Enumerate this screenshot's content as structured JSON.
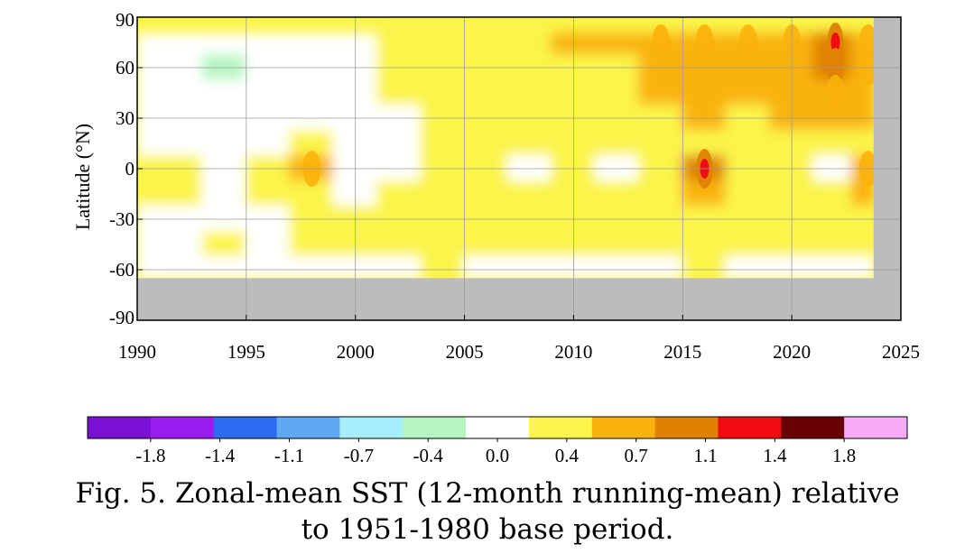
{
  "chart_data": {
    "type": "heatmap",
    "title": "",
    "xlabel": "",
    "ylabel": "Latitude (°N)",
    "xlim": [
      1990,
      2025
    ],
    "ylim": [
      -90,
      90
    ],
    "x_ticks": [
      1990,
      1995,
      2000,
      2005,
      2010,
      2015,
      2020,
      2025
    ],
    "y_ticks": [
      {
        "value": 90,
        "label": "90"
      },
      {
        "value": 60,
        "label": "60"
      },
      {
        "value": 30,
        "label": "30"
      },
      {
        "value": 0,
        "label": "0"
      },
      {
        "value": -30,
        "label": "-30"
      },
      {
        "value": -60,
        "label": "-60"
      },
      {
        "value": -90,
        "label": "-90"
      }
    ],
    "grid": true,
    "colorbar": {
      "tick_labels": [
        "-1.8",
        "-1.4",
        "-1.1",
        "-0.7",
        "-0.4",
        "0.0",
        "0.4",
        "0.7",
        "1.1",
        "1.4",
        "1.8"
      ],
      "colors": [
        "#7a10d6",
        "#9a1cf0",
        "#2b6cf2",
        "#5ea8f5",
        "#a6eefc",
        "#b4f5c0",
        "#ffffff",
        "#fbf44a",
        "#f9b30c",
        "#df8204",
        "#f00c12",
        "#6a0004",
        "#f8aaf8"
      ]
    },
    "no_data_color": "#bcbcbc",
    "no_data_after_year": 2023.75,
    "data_lat_range": [
      -65,
      80
    ],
    "latitudes": [
      75,
      60,
      45,
      30,
      15,
      0,
      -15,
      -30,
      -45,
      -60
    ],
    "years": [
      1990,
      1992,
      1994,
      1996,
      1998,
      2000,
      2002,
      2004,
      2006,
      2008,
      2010,
      2012,
      2014,
      2016,
      2018,
      2020,
      2022,
      2023.5
    ],
    "values": [
      [
        0.3,
        0.1,
        0.0,
        0.2,
        0.3,
        0.3,
        0.4,
        0.6,
        0.6,
        0.6,
        0.7,
        0.7,
        0.9,
        1.0,
        0.9,
        1.0,
        1.2,
        1.0
      ],
      [
        0.2,
        0.0,
        -0.1,
        0.0,
        0.2,
        0.3,
        0.4,
        0.6,
        0.6,
        0.5,
        0.6,
        0.6,
        0.7,
        0.8,
        0.7,
        0.8,
        1.1,
        0.9
      ],
      [
        0.2,
        0.1,
        0.0,
        0.1,
        0.3,
        0.3,
        0.4,
        0.5,
        0.6,
        0.5,
        0.6,
        0.6,
        0.7,
        0.8,
        0.8,
        0.8,
        0.9,
        0.8
      ],
      [
        0.3,
        0.2,
        0.1,
        0.2,
        0.3,
        0.3,
        0.3,
        0.4,
        0.5,
        0.5,
        0.5,
        0.5,
        0.6,
        0.7,
        0.6,
        0.7,
        0.7,
        0.7
      ],
      [
        0.3,
        0.3,
        0.2,
        0.3,
        0.4,
        0.2,
        0.3,
        0.4,
        0.4,
        0.4,
        0.5,
        0.4,
        0.5,
        0.6,
        0.5,
        0.6,
        0.4,
        0.6
      ],
      [
        0.5,
        0.4,
        0.3,
        0.4,
        0.9,
        0.1,
        0.3,
        0.5,
        0.4,
        0.3,
        0.6,
        0.3,
        0.5,
        1.2,
        0.5,
        0.6,
        0.3,
        0.9
      ],
      [
        0.4,
        0.4,
        0.3,
        0.4,
        0.6,
        0.3,
        0.4,
        0.5,
        0.5,
        0.4,
        0.6,
        0.5,
        0.6,
        0.8,
        0.6,
        0.6,
        0.5,
        0.7
      ],
      [
        0.3,
        0.3,
        0.3,
        0.3,
        0.4,
        0.4,
        0.4,
        0.5,
        0.5,
        0.5,
        0.5,
        0.5,
        0.6,
        0.6,
        0.6,
        0.6,
        0.6,
        0.6
      ],
      [
        0.3,
        0.3,
        0.4,
        0.3,
        0.4,
        0.4,
        0.5,
        0.5,
        0.5,
        0.5,
        0.5,
        0.5,
        0.5,
        0.6,
        0.6,
        0.6,
        0.6,
        0.6
      ],
      [
        0.3,
        0.2,
        0.2,
        0.3,
        0.3,
        0.2,
        0.3,
        0.4,
        0.3,
        0.2,
        0.2,
        0.3,
        0.3,
        0.4,
        0.3,
        0.3,
        0.3,
        0.3
      ]
    ]
  },
  "caption": {
    "line1": "Fig. 5. Zonal-mean SST (12-month running-mean) relative",
    "line2": "to 1951-1980 base period."
  }
}
